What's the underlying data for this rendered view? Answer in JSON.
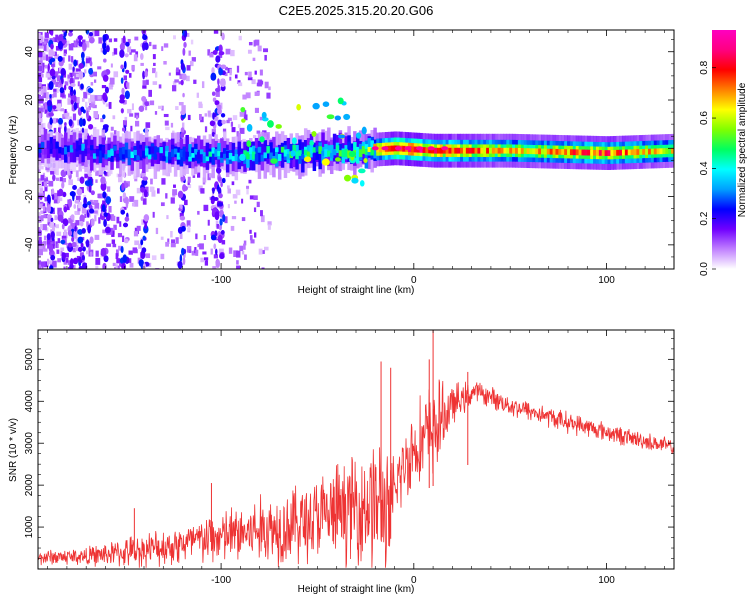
{
  "figure": {
    "title": "C2E5.2025.315.20.20.G06"
  },
  "chart_data": [
    {
      "type": "heatmap",
      "name": "spectrogram",
      "xlabel": "Height of straight line (km)",
      "ylabel": "Frequency (Hz)",
      "xlim": [
        -195,
        135
      ],
      "ylim": [
        -50,
        49
      ],
      "x_ticks": [
        -100,
        0,
        100
      ],
      "x_tick_labels": [
        "-100",
        "0",
        "100"
      ],
      "y_ticks": [
        -40,
        -20,
        0,
        20,
        40
      ],
      "y_tick_labels": [
        "-40",
        "-20",
        "0",
        "20",
        "40"
      ],
      "ridge": [
        {
          "x": -195,
          "y": 0,
          "amp": 0.25
        },
        {
          "x": -150,
          "y": -2,
          "amp": 0.35
        },
        {
          "x": -100,
          "y": -3,
          "amp": 0.4
        },
        {
          "x": -60,
          "y": -2,
          "amp": 0.45
        },
        {
          "x": -30,
          "y": -1,
          "amp": 0.5
        },
        {
          "x": -10,
          "y": 0,
          "amp": 0.85
        },
        {
          "x": 10,
          "y": -1,
          "amp": 0.8
        },
        {
          "x": 50,
          "y": -1,
          "amp": 0.65
        },
        {
          "x": 100,
          "y": -2,
          "amp": 0.75
        },
        {
          "x": 135,
          "y": -1,
          "amp": 0.6
        }
      ],
      "colorbar": {
        "label": "Normalized spectral amplitude",
        "range": [
          0,
          0.95
        ],
        "ticks": [
          0.0,
          0.2,
          0.4,
          0.6,
          0.8
        ],
        "tick_labels": [
          "0.0",
          "0.2",
          "0.4",
          "0.6",
          "0.8"
        ],
        "colors": [
          "#ffffff",
          "#c080ff",
          "#7000ff",
          "#0000ff",
          "#00a0ff",
          "#00ffff",
          "#00ff60",
          "#80ff00",
          "#ffff00",
          "#ff8000",
          "#ff0000",
          "#ff0080",
          "#ff00c0"
        ]
      }
    },
    {
      "type": "line",
      "name": "snr",
      "xlabel": "Height of straight line (km)",
      "ylabel": "SNR (10 * v/v)",
      "xlim": [
        -195,
        135
      ],
      "ylim": [
        0,
        5700
      ],
      "x_ticks": [
        -100,
        0,
        100
      ],
      "x_tick_labels": [
        "-100",
        "0",
        "100"
      ],
      "y_ticks": [
        1000,
        2000,
        3000,
        4000,
        5000
      ],
      "y_tick_labels": [
        "1000",
        "2000",
        "3000",
        "4000",
        "5000"
      ],
      "color": "#ee3333",
      "envelope": [
        {
          "x": -195,
          "mean": 280,
          "amp": 180
        },
        {
          "x": -170,
          "mean": 300,
          "amp": 220
        },
        {
          "x": -145,
          "mean": 420,
          "amp": 380
        },
        {
          "x": -120,
          "mean": 600,
          "amp": 500
        },
        {
          "x": -95,
          "mean": 800,
          "amp": 700
        },
        {
          "x": -70,
          "mean": 1000,
          "amp": 900
        },
        {
          "x": -45,
          "mean": 1250,
          "amp": 1100
        },
        {
          "x": -30,
          "mean": 1500,
          "amp": 1300
        },
        {
          "x": -20,
          "mean": 1600,
          "amp": 1700
        },
        {
          "x": -12,
          "mean": 1200,
          "amp": 1400
        },
        {
          "x": -8,
          "mean": 2200,
          "amp": 900
        },
        {
          "x": 0,
          "mean": 2900,
          "amp": 1000
        },
        {
          "x": 10,
          "mean": 3300,
          "amp": 1200
        },
        {
          "x": 20,
          "mean": 3900,
          "amp": 500
        },
        {
          "x": 32,
          "mean": 4250,
          "amp": 250
        },
        {
          "x": 50,
          "mean": 3900,
          "amp": 250
        },
        {
          "x": 80,
          "mean": 3500,
          "amp": 250
        },
        {
          "x": 110,
          "mean": 3150,
          "amp": 220
        },
        {
          "x": 135,
          "mean": 2900,
          "amp": 200
        }
      ],
      "spikes": [
        {
          "x": 10,
          "y": 5700
        },
        {
          "x": -17,
          "y": 4950
        },
        {
          "x": -12,
          "y": 4800
        },
        {
          "x": 8,
          "y": 5000
        },
        {
          "x": 28,
          "y": 4700
        },
        {
          "x": -145,
          "y": 1450
        },
        {
          "x": -105,
          "y": 2050
        }
      ]
    }
  ]
}
